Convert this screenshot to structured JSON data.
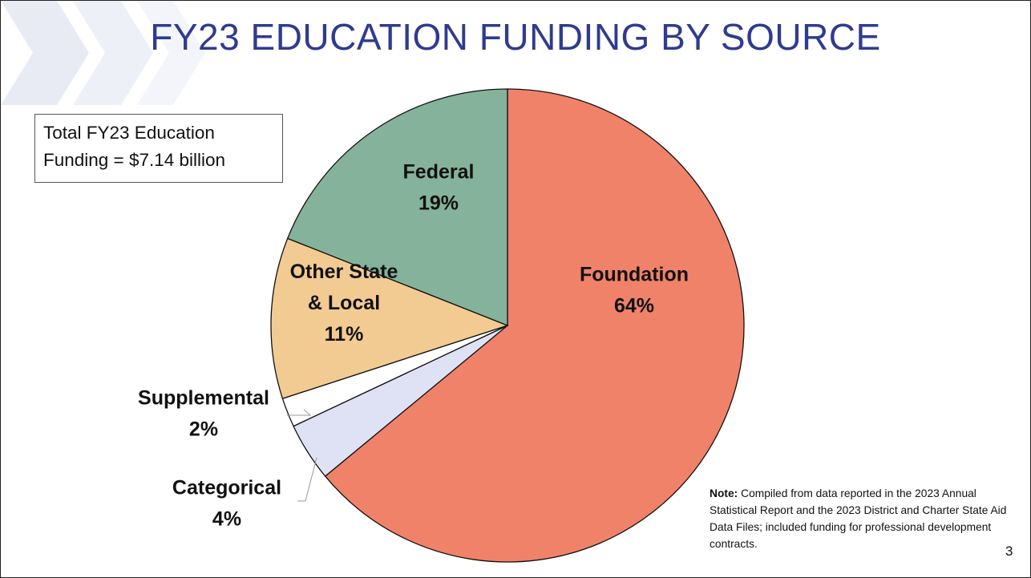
{
  "slide": {
    "title": "FY23 EDUCATION FUNDING BY SOURCE",
    "total_box": {
      "line1": "Total FY23 Education",
      "line2": "Funding = $7.14 billion"
    },
    "note_label": "Note:",
    "note_text": " Compiled from data reported in the 2023 Annual Statistical Report and the 2023 District and Charter State Aid Data Files; included funding for professional development contracts.",
    "page_number": "3"
  },
  "colors": {
    "title": "#2f3b8f",
    "chevron": "#e6e8f2"
  },
  "chart_data": {
    "type": "pie",
    "title": "FY23 EDUCATION FUNDING BY SOURCE",
    "start": "12 o'clock",
    "direction": "clockwise",
    "slices": [
      {
        "label": "Foundation",
        "lines": [
          "Foundation",
          "64%"
        ],
        "value": 64,
        "color": "#f0826a"
      },
      {
        "label": "Categorical",
        "lines": [
          "Categorical",
          "4%"
        ],
        "value": 4,
        "color": "#dfe1f4"
      },
      {
        "label": "Supplemental",
        "lines": [
          "Supplemental",
          "2%"
        ],
        "value": 2,
        "color": "#ffffff"
      },
      {
        "label": "Other State & Local",
        "lines": [
          "Other State",
          "& Local",
          "11%"
        ],
        "value": 11,
        "color": "#f2cb92"
      },
      {
        "label": "Federal",
        "lines": [
          "Federal",
          "19%"
        ],
        "value": 19,
        "color": "#85b29a"
      }
    ]
  }
}
